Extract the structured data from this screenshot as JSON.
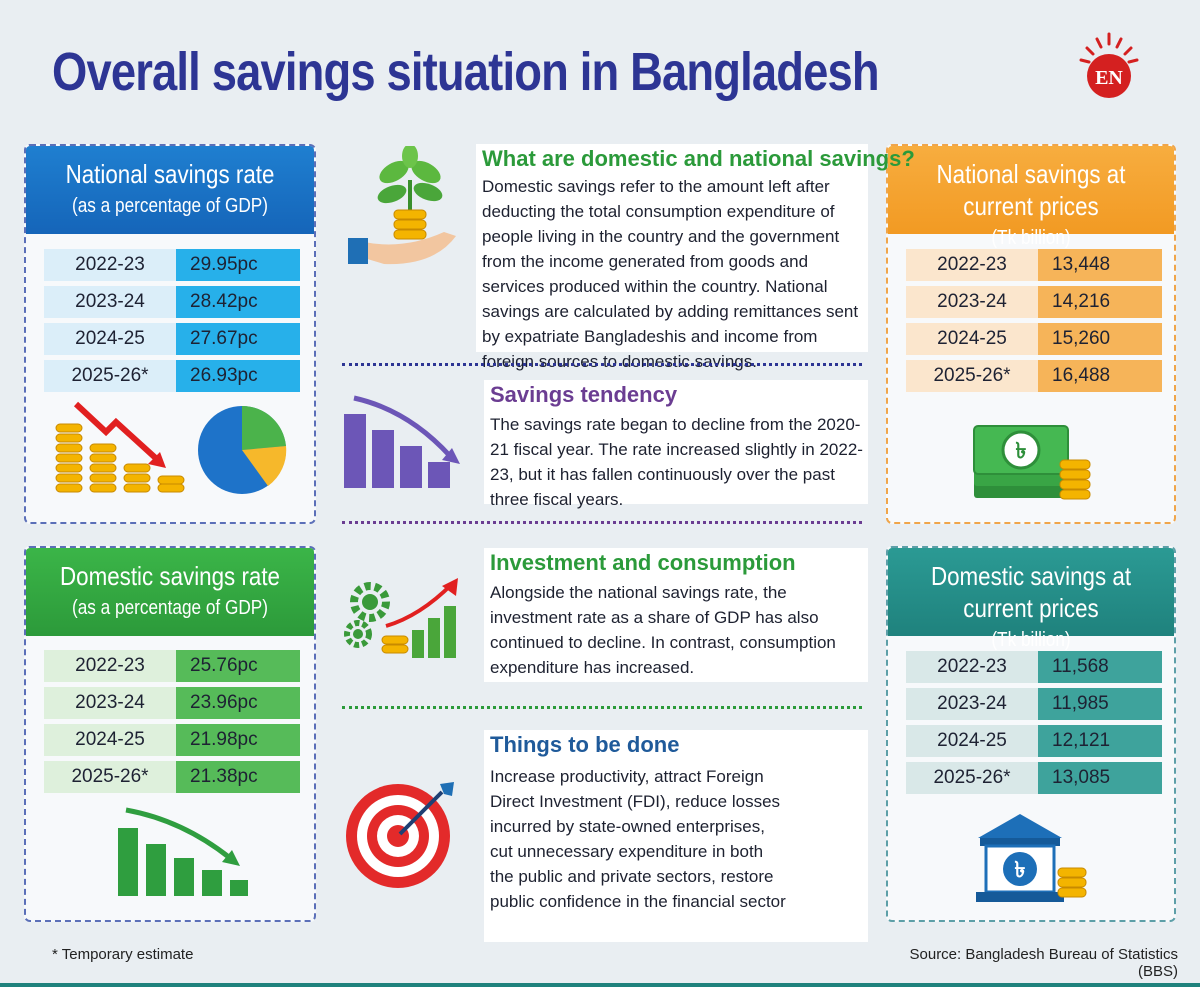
{
  "title": "Overall savings situation in Bangladesh",
  "logo_text": "EN",
  "national_rate": {
    "title": "National savings rate",
    "subtitle": "(as a percentage of GDP)",
    "rows": [
      {
        "year": "2022-23",
        "value": "29.95pc"
      },
      {
        "year": "2023-24",
        "value": "28.42pc"
      },
      {
        "year": "2024-25",
        "value": "27.67pc"
      },
      {
        "year": "2025-26*",
        "value": "26.93pc"
      }
    ]
  },
  "domestic_rate": {
    "title": "Domestic savings rate",
    "subtitle": "(as a percentage of GDP)",
    "rows": [
      {
        "year": "2022-23",
        "value": "25.76pc"
      },
      {
        "year": "2023-24",
        "value": "23.96pc"
      },
      {
        "year": "2024-25",
        "value": "21.98pc"
      },
      {
        "year": "2025-26*",
        "value": "21.38pc"
      }
    ]
  },
  "national_current": {
    "title": "National savings at current prices",
    "subtitle": "(Tk billion)",
    "rows": [
      {
        "year": "2022-23",
        "value": "13,448"
      },
      {
        "year": "2023-24",
        "value": "14,216"
      },
      {
        "year": "2024-25",
        "value": "15,260"
      },
      {
        "year": "2025-26*",
        "value": "16,488"
      }
    ]
  },
  "domestic_current": {
    "title": "Domestic savings at current prices",
    "subtitle": "(Tk billion)",
    "rows": [
      {
        "year": "2022-23",
        "value": "11,568"
      },
      {
        "year": "2023-24",
        "value": "11,985"
      },
      {
        "year": "2024-25",
        "value": "12,121"
      },
      {
        "year": "2025-26*",
        "value": "13,085"
      }
    ]
  },
  "sections": {
    "what": {
      "title": "What are domestic and national savings?",
      "body": "Domestic savings refer to the amount left after deducting the total consumption expenditure of people living in the country and the government from the income generated from goods and services produced within the country. National savings are calculated by adding remittances sent by expatriate Bangladeshis and income from foreign sources to domestic savings."
    },
    "tendency": {
      "title": "Savings tendency",
      "body": "The savings rate began to decline from the 2020-21 fiscal year. The rate increased slightly in 2022-23, but it has fallen continuously over the past three fiscal years."
    },
    "investment": {
      "title": "Investment and consumption",
      "body": "Alongside the national savings rate, the investment rate as a share of GDP has also continued to decline. In contrast, consumption expenditure has increased."
    },
    "todo": {
      "title": "Things to be done",
      "body": "Increase productivity, attract Foreign Direct Investment (FDI), reduce losses incurred by state-owned enterprises, cut unnecessary expenditure in both the public and private sectors, restore public confidence in the financial sector"
    }
  },
  "footnote": "* Temporary estimate",
  "source": "Source: Bangladesh Bureau of Statistics (BBS)",
  "colors": {
    "title": "#2d3594",
    "blue": "#1f7fd0",
    "green": "#3bb548",
    "orange": "#f7ad3f",
    "teal": "#2b9a94",
    "section_green": "#2b9a3a",
    "section_purple": "#6b3d92",
    "section_navy": "#1f5a9a"
  }
}
